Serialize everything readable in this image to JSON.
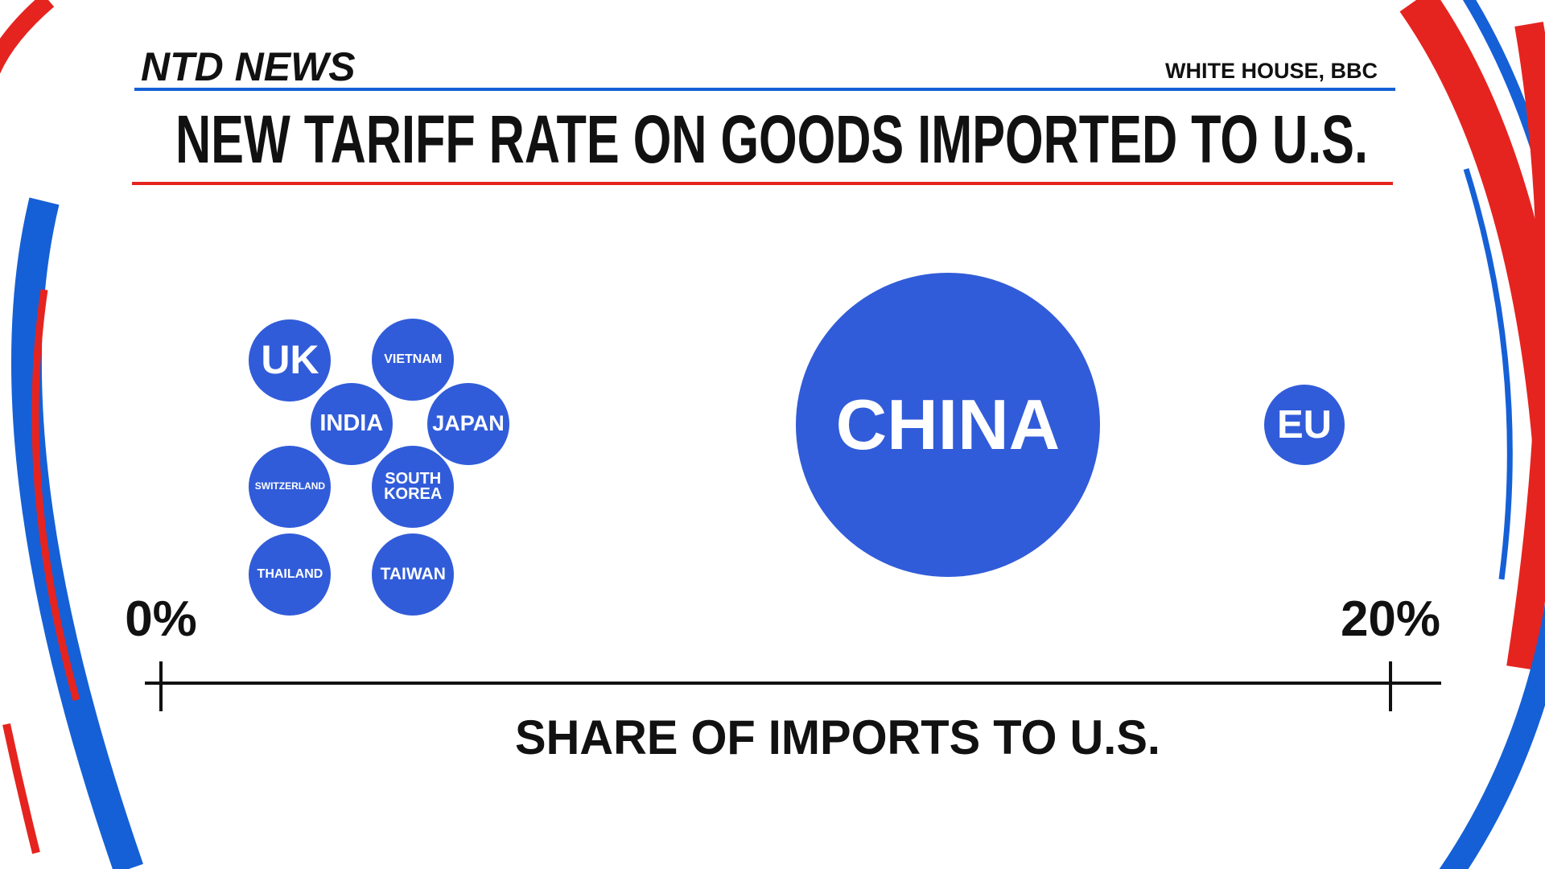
{
  "header": {
    "logo": "NTD NEWS",
    "source": "WHITE HOUSE, BBC"
  },
  "chart_data": {
    "type": "bubble",
    "title": "NEW TARIFF RATE ON GOODS IMPORTED TO U.S.",
    "x_label": "SHARE OF IMPORTS TO U.S.",
    "categories": [
      "UK",
      "VIETNAM",
      "INDIA",
      "JAPAN",
      "SWITZERLAND",
      "SOUTH KOREA",
      "THAILAND",
      "TAIWAN",
      "CHINA",
      "EU"
    ],
    "values": [
      2.1,
      4.1,
      3.1,
      5.0,
      2.1,
      4.1,
      2.1,
      4.1,
      12.8,
      18.6
    ],
    "color": "#315cd9",
    "xlim": [
      0,
      20
    ],
    "xticks": [
      {
        "value": 0,
        "label": "0%"
      },
      {
        "value": 20,
        "label": "20%"
      }
    ]
  }
}
